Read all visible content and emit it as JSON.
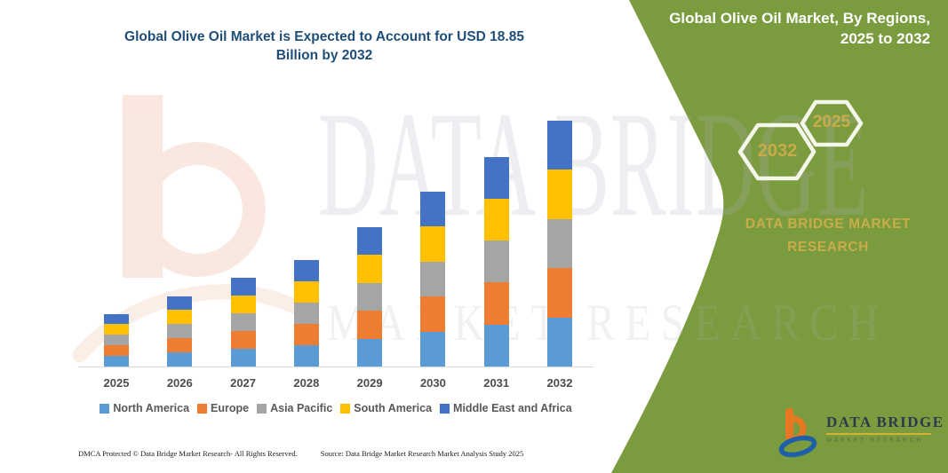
{
  "title": {
    "line1": "Global Olive Oil Market is Expected to Account for USD 18.85",
    "line2": "Billion by 2032"
  },
  "chart_data": {
    "type": "bar",
    "stacked": true,
    "title": "Global Olive Oil Market is Expected to Account for USD 18.85 Billion by 2032",
    "unit": "USD Billion",
    "categories": [
      "2025",
      "2026",
      "2027",
      "2028",
      "2029",
      "2030",
      "2031",
      "2032"
    ],
    "series": [
      {
        "name": "North America",
        "color": "#5B9BD5",
        "values": [
          0.81,
          1.08,
          1.36,
          1.64,
          2.14,
          2.69,
          3.22,
          3.77
        ]
      },
      {
        "name": "Europe",
        "color": "#ED7D31",
        "values": [
          0.81,
          1.08,
          1.36,
          1.64,
          2.14,
          2.69,
          3.22,
          3.77
        ]
      },
      {
        "name": "Asia Pacific",
        "color": "#A5A5A5",
        "values": [
          0.81,
          1.08,
          1.36,
          1.64,
          2.14,
          2.69,
          3.22,
          3.77
        ]
      },
      {
        "name": "South America",
        "color": "#FFC000",
        "values": [
          0.81,
          1.08,
          1.36,
          1.64,
          2.14,
          2.69,
          3.22,
          3.77
        ]
      },
      {
        "name": "Middle East and Africa",
        "color": "#4472C4",
        "values": [
          0.81,
          1.08,
          1.36,
          1.64,
          2.14,
          2.69,
          3.22,
          3.77
        ]
      }
    ],
    "totals_estimated": [
      4.05,
      5.4,
      6.8,
      8.2,
      10.7,
      13.45,
      16.1,
      18.85
    ],
    "ylim": [
      0,
      18.85
    ],
    "gridlines": false,
    "y_axis_shown": false,
    "legend_position": "bottom"
  },
  "watermark": {
    "big": "DATA BRIDGE",
    "sub": "MARKET RESEARCH"
  },
  "panel": {
    "heading_line1": "Global Olive Oil Market, By Regions,",
    "heading_line2": "2025 to 2032",
    "hexagon_left_year": "2032",
    "hexagon_right_year": "2025",
    "brand": "DATA BRIDGE MARKET RESEARCH"
  },
  "logo": {
    "name": "DATA BRIDGE",
    "tagline": "MARKET RESEARCH"
  },
  "footer": {
    "left": "DMCA Protected © Data Bridge Market Research-  All Rights Reserved.",
    "right": "Source: Data Bridge Market Research  Market Analysis Study 2025"
  },
  "colors": {
    "panel_green": "#7A9C3E",
    "title_blue": "#1F4E79",
    "gold": "#C8AC49",
    "axis_gray": "#D9D9D9",
    "label_gray": "#4D4D4D",
    "logo_orange": "#E87722",
    "logo_blue": "#1F5FA8",
    "watermark_peach": "#F3C9B5"
  }
}
